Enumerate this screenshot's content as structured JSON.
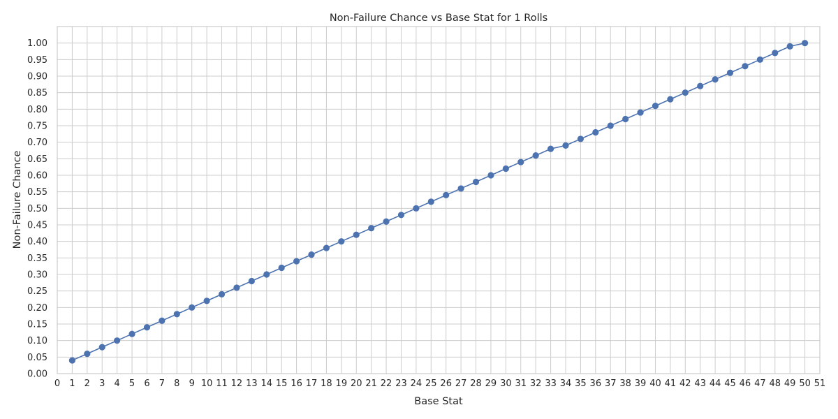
{
  "chart_data": {
    "type": "line",
    "title": "Non-Failure Chance vs Base Stat for 1 Rolls",
    "xlabel": "Base Stat",
    "ylabel": "Non-Failure Chance",
    "xlim": [
      0,
      51
    ],
    "ylim": [
      0,
      1.05
    ],
    "xticks": [
      0,
      1,
      2,
      3,
      4,
      5,
      6,
      7,
      8,
      9,
      10,
      11,
      12,
      13,
      14,
      15,
      16,
      17,
      18,
      19,
      20,
      21,
      22,
      23,
      24,
      25,
      26,
      27,
      28,
      29,
      30,
      31,
      32,
      33,
      34,
      35,
      36,
      37,
      38,
      39,
      40,
      41,
      42,
      43,
      44,
      45,
      46,
      47,
      48,
      49,
      50,
      51
    ],
    "yticks": [
      "0.00",
      "0.05",
      "0.10",
      "0.15",
      "0.20",
      "0.25",
      "0.30",
      "0.35",
      "0.40",
      "0.45",
      "0.50",
      "0.55",
      "0.60",
      "0.65",
      "0.70",
      "0.75",
      "0.80",
      "0.85",
      "0.90",
      "0.95",
      "1.00"
    ],
    "grid": true,
    "color": "#4c72b0",
    "marker": "circle",
    "series": [
      {
        "x": [
          1,
          2,
          3,
          4,
          5,
          6,
          7,
          8,
          9,
          10,
          11,
          12,
          13,
          14,
          15,
          16,
          17,
          18,
          19,
          20,
          21,
          22,
          23,
          24,
          25,
          26,
          27,
          28,
          29,
          30,
          31,
          32,
          33,
          34,
          35,
          36,
          37,
          38,
          39,
          40,
          41,
          42,
          43,
          44,
          45,
          46,
          47,
          48,
          49,
          50
        ],
        "values": [
          0.04,
          0.06,
          0.08,
          0.1,
          0.12,
          0.14,
          0.16,
          0.18,
          0.2,
          0.22,
          0.24,
          0.26,
          0.28,
          0.3,
          0.32,
          0.34,
          0.36,
          0.38,
          0.4,
          0.42,
          0.44,
          0.46,
          0.48,
          0.5,
          0.52,
          0.54,
          0.56,
          0.58,
          0.6,
          0.62,
          0.64,
          0.66,
          0.68,
          0.69,
          0.71,
          0.73,
          0.75,
          0.77,
          0.79,
          0.81,
          0.83,
          0.85,
          0.87,
          0.89,
          0.91,
          0.93,
          0.95,
          0.97,
          0.99,
          1.0
        ]
      }
    ]
  }
}
